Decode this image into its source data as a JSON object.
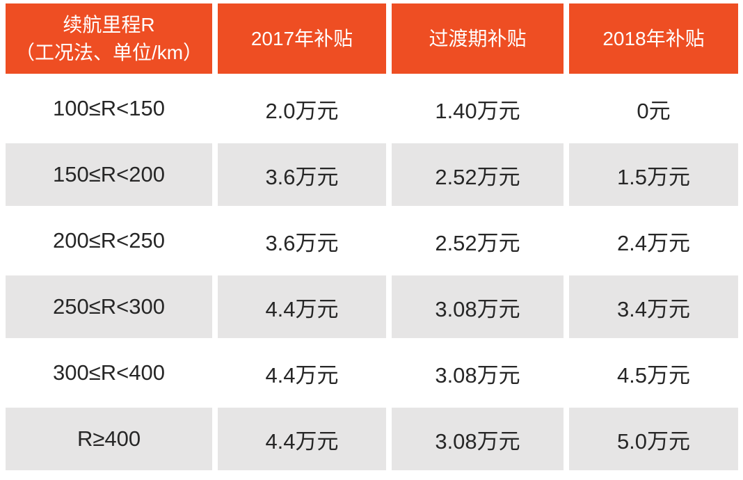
{
  "table": {
    "header": {
      "range_line1": "续航里程R",
      "range_line2": "（工况法、单位/km）",
      "col_2017": "2017年补贴",
      "col_transition": "过渡期补贴",
      "col_2018": "2018年补贴"
    },
    "rows": [
      [
        "100≤R<150",
        "2.0万元",
        "1.40万元",
        "0元"
      ],
      [
        "150≤R<200",
        "3.6万元",
        "2.52万元",
        "1.5万元"
      ],
      [
        "200≤R<250",
        "3.6万元",
        "2.52万元",
        "2.4万元"
      ],
      [
        "250≤R<300",
        "4.4万元",
        "3.08万元",
        "3.4万元"
      ],
      [
        "300≤R<400",
        "4.4万元",
        "3.08万元",
        "4.5万元"
      ],
      [
        "R≥400",
        "4.4万元",
        "3.08万元",
        "5.0万元"
      ]
    ]
  },
  "colors": {
    "accent": "#ee4e23",
    "row_alt": "#e6e5e5",
    "header_text": "#ffffff",
    "body_text": "#262626"
  },
  "chart_data": {
    "type": "table",
    "columns": [
      "续航里程R（工况法、单位/km）",
      "2017年补贴",
      "过渡期补贴",
      "2018年补贴"
    ],
    "rows": [
      [
        "100≤R<150",
        "2.0万元",
        "1.40万元",
        "0元"
      ],
      [
        "150≤R<200",
        "3.6万元",
        "2.52万元",
        "1.5万元"
      ],
      [
        "200≤R<250",
        "3.6万元",
        "2.52万元",
        "2.4万元"
      ],
      [
        "250≤R<300",
        "4.4万元",
        "3.08万元",
        "3.4万元"
      ],
      [
        "300≤R<400",
        "4.4万元",
        "3.08万元",
        "4.5万元"
      ],
      [
        "R≥400",
        "4.4万元",
        "3.08万元",
        "5.0万元"
      ]
    ],
    "legend_position": "none",
    "grid": false
  }
}
